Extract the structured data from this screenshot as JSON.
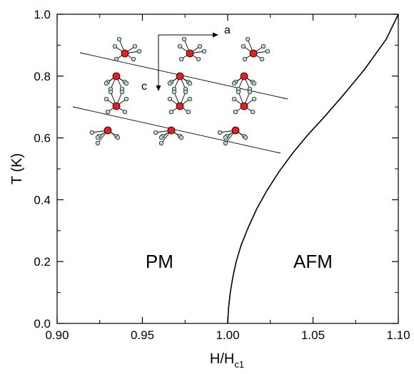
{
  "chart_data": {
    "type": "line",
    "xlabel_main": "H/H",
    "xlabel_sub": "c1",
    "ylabel": "T (K)",
    "xlim": [
      0.9,
      1.1
    ],
    "ylim": [
      0.0,
      1.0
    ],
    "xticks": [
      {
        "value": 0.9,
        "label": "0.90"
      },
      {
        "value": 0.95,
        "label": "0.95"
      },
      {
        "value": 1.0,
        "label": "1.00"
      },
      {
        "value": 1.05,
        "label": "1.05"
      },
      {
        "value": 1.1,
        "label": "1.10"
      }
    ],
    "yticks": [
      {
        "value": 0.0,
        "label": "0.0"
      },
      {
        "value": 0.2,
        "label": "0.2"
      },
      {
        "value": 0.4,
        "label": "0.4"
      },
      {
        "value": 0.6,
        "label": "0.6"
      },
      {
        "value": 0.8,
        "label": "0.8"
      },
      {
        "value": 1.0,
        "label": "1.0"
      }
    ],
    "grid": false,
    "series": [
      {
        "x": [
          1.0,
          1.0005,
          1.0015,
          1.003,
          1.005,
          1.008,
          1.012,
          1.017,
          1.023,
          1.03,
          1.038,
          1.047,
          1.057,
          1.068,
          1.08,
          1.093,
          1.1
        ],
        "y": [
          0.0,
          0.05,
          0.1,
          0.15,
          0.2,
          0.255,
          0.31,
          0.37,
          0.43,
          0.49,
          0.55,
          0.61,
          0.67,
          0.74,
          0.82,
          0.92,
          1.0
        ]
      }
    ],
    "annotations": [
      {
        "text": "PM",
        "x": 0.96,
        "y": 0.2
      },
      {
        "text": "AFM",
        "x": 1.05,
        "y": 0.2
      }
    ],
    "inset": {
      "axis_a": "a",
      "axis_c": "c",
      "colors": {
        "metal": "#e81e1e",
        "ligand": "#b9d8cf"
      }
    }
  }
}
